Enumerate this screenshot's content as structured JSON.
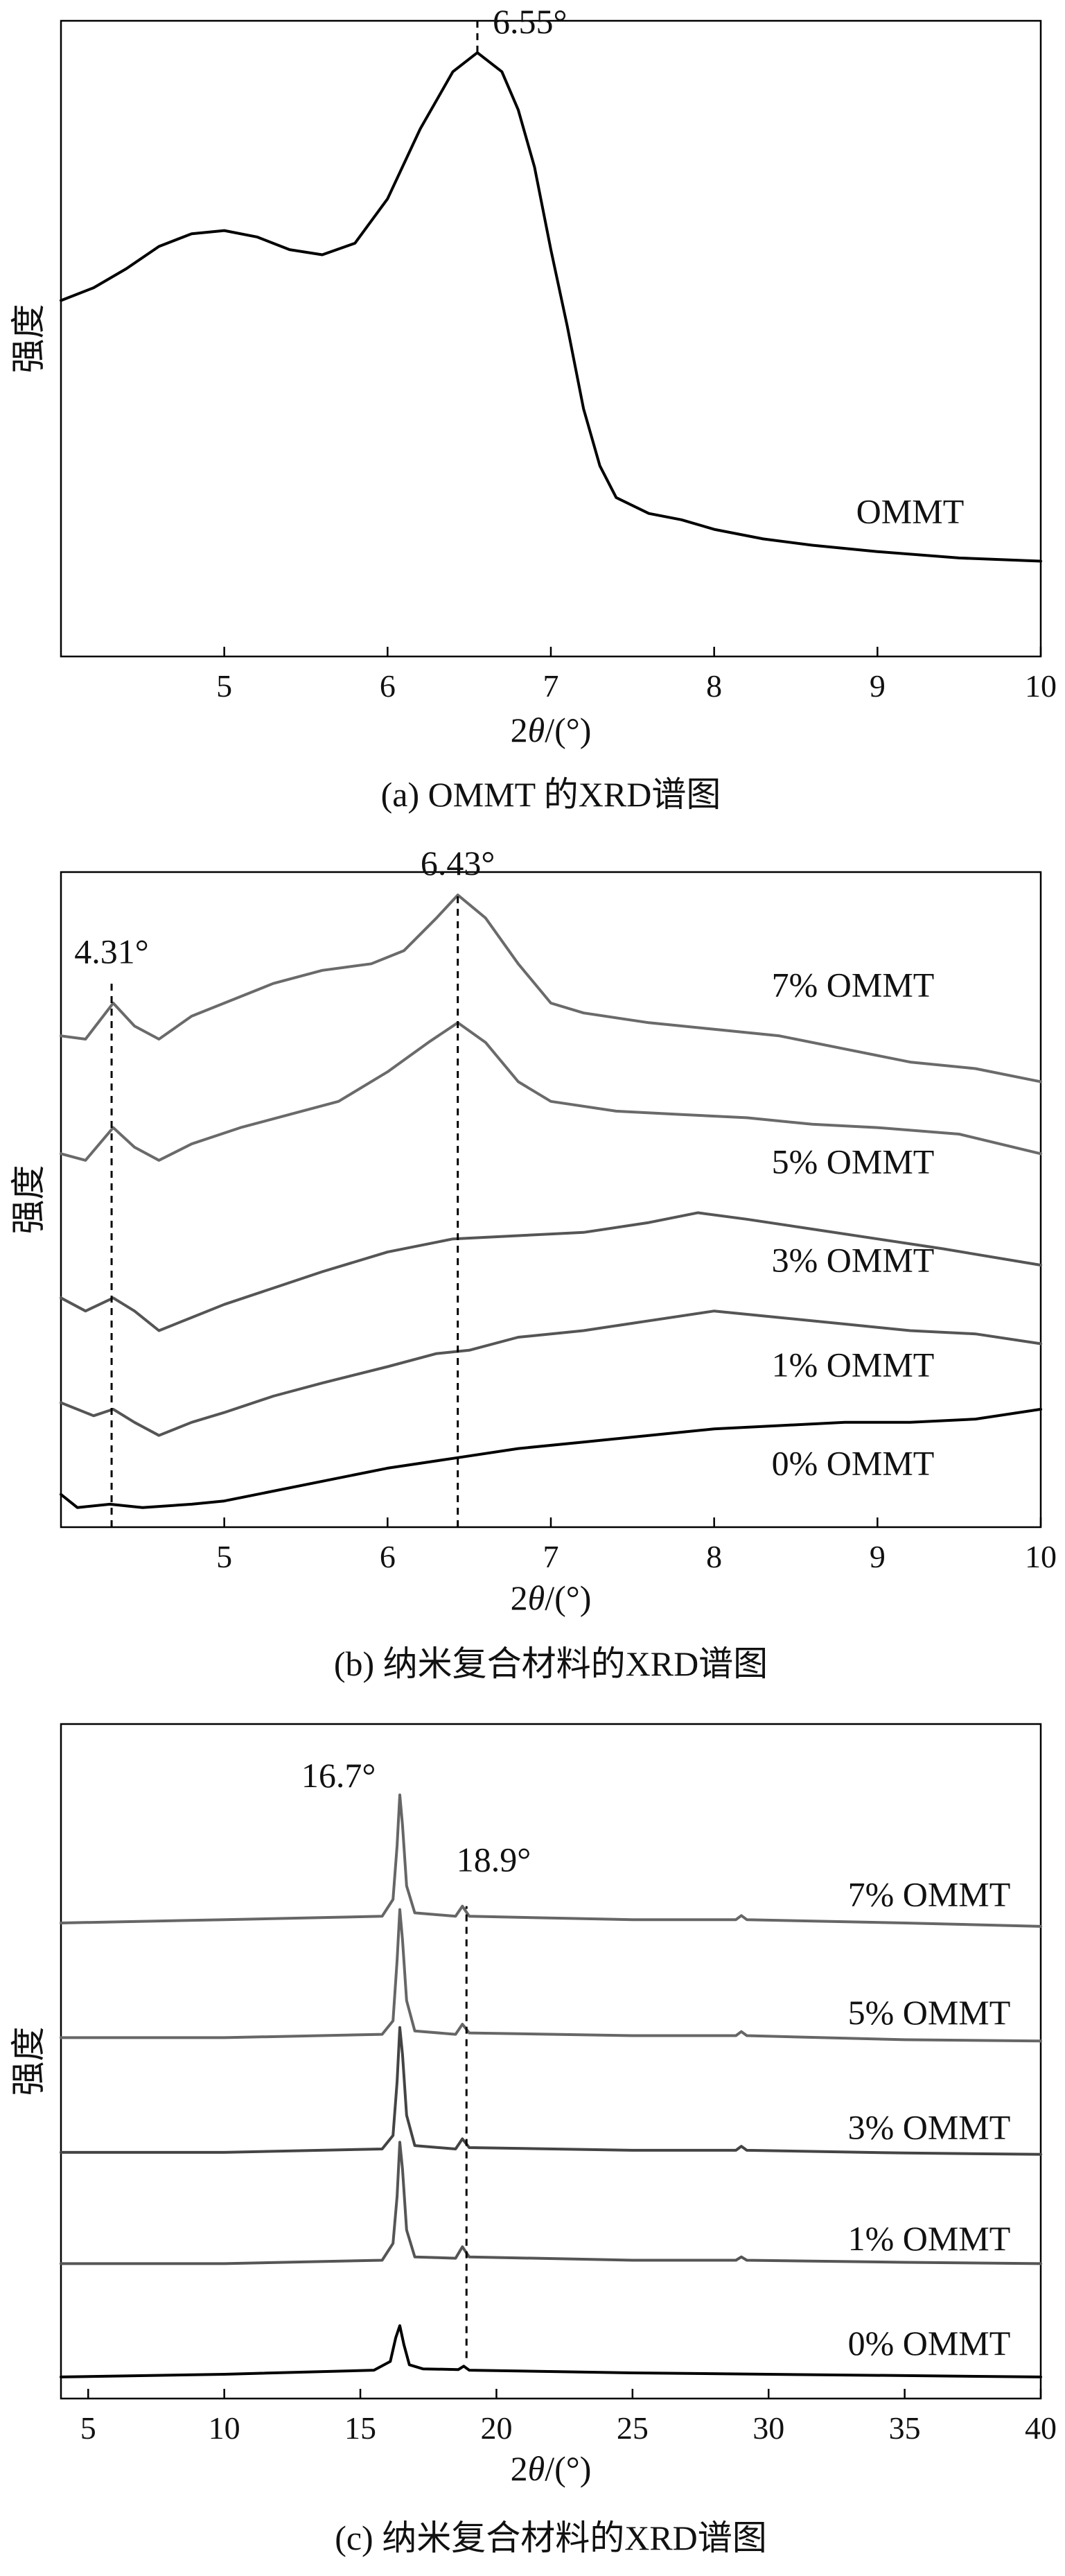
{
  "chart_data": [
    {
      "id": "a",
      "type": "line",
      "caption": "(a) OMMT 的XRD谱图",
      "ylabel": "强度",
      "xlabel_prefix": "2",
      "xlabel_symbol": "θ",
      "xlabel_suffix": "/(°)",
      "xlim": [
        4.0,
        10.0
      ],
      "xticks": [
        5,
        6,
        7,
        8,
        9,
        10
      ],
      "ylim": [
        0,
        100
      ],
      "grid": false,
      "series": [
        {
          "name": "OMMT",
          "color": "#000000",
          "points": [
            [
              4.0,
              56
            ],
            [
              4.2,
              58
            ],
            [
              4.4,
              61
            ],
            [
              4.6,
              64.5
            ],
            [
              4.8,
              66.5
            ],
            [
              5.0,
              67
            ],
            [
              5.2,
              66
            ],
            [
              5.4,
              64
            ],
            [
              5.6,
              63.2
            ],
            [
              5.8,
              65
            ],
            [
              6.0,
              72
            ],
            [
              6.2,
              83
            ],
            [
              6.4,
              92
            ],
            [
              6.55,
              95
            ],
            [
              6.7,
              92
            ],
            [
              6.8,
              86
            ],
            [
              6.9,
              77
            ],
            [
              7.0,
              64
            ],
            [
              7.1,
              52
            ],
            [
              7.2,
              39
            ],
            [
              7.3,
              30
            ],
            [
              7.4,
              25
            ],
            [
              7.6,
              22.5
            ],
            [
              7.8,
              21.5
            ],
            [
              8.0,
              20
            ],
            [
              8.3,
              18.5
            ],
            [
              8.6,
              17.5
            ],
            [
              9.0,
              16.5
            ],
            [
              9.5,
              15.5
            ],
            [
              10.0,
              15
            ]
          ]
        }
      ],
      "annotations": [
        {
          "x": 6.55,
          "label": "6.55°",
          "dash_from": 95,
          "dash_to": 100,
          "label_y": 100
        }
      ],
      "curve_labels": [
        {
          "text": "OMMT",
          "x": 9.2,
          "y": 21
        }
      ]
    },
    {
      "id": "b",
      "type": "line",
      "caption": "(b) 纳米复合材料的XRD谱图",
      "ylabel": "强度",
      "xlabel_prefix": "2",
      "xlabel_symbol": "θ",
      "xlabel_suffix": "/(°)",
      "xlim": [
        4.0,
        10.0
      ],
      "xticks": [
        5,
        6,
        7,
        8,
        9,
        10
      ],
      "ylim": [
        0,
        100
      ],
      "grid": false,
      "series": [
        {
          "name": "0% OMMT",
          "color": "#000000",
          "points": [
            [
              4.0,
              5
            ],
            [
              4.1,
              3
            ],
            [
              4.3,
              3.5
            ],
            [
              4.5,
              3
            ],
            [
              4.8,
              3.5
            ],
            [
              5.0,
              4
            ],
            [
              5.3,
              5.5
            ],
            [
              5.6,
              7
            ],
            [
              6.0,
              9
            ],
            [
              6.4,
              10.5
            ],
            [
              6.8,
              12
            ],
            [
              7.2,
              13
            ],
            [
              7.6,
              14
            ],
            [
              8.0,
              15
            ],
            [
              8.4,
              15.5
            ],
            [
              8.8,
              16
            ],
            [
              9.2,
              16
            ],
            [
              9.6,
              16.5
            ],
            [
              10.0,
              18
            ]
          ]
        },
        {
          "name": "1% OMMT",
          "color": "#555555",
          "points": [
            [
              4.0,
              19
            ],
            [
              4.2,
              17
            ],
            [
              4.32,
              18
            ],
            [
              4.45,
              16
            ],
            [
              4.6,
              14
            ],
            [
              4.8,
              16
            ],
            [
              5.0,
              17.5
            ],
            [
              5.3,
              20
            ],
            [
              5.6,
              22
            ],
            [
              6.0,
              24.5
            ],
            [
              6.3,
              26.5
            ],
            [
              6.5,
              27
            ],
            [
              6.8,
              29
            ],
            [
              7.2,
              30
            ],
            [
              7.6,
              31.5
            ],
            [
              8.0,
              33
            ],
            [
              8.4,
              32
            ],
            [
              8.8,
              31
            ],
            [
              9.2,
              30
            ],
            [
              9.6,
              29.5
            ],
            [
              10.0,
              28
            ]
          ]
        },
        {
          "name": "3% OMMT",
          "color": "#555555",
          "points": [
            [
              4.0,
              35
            ],
            [
              4.15,
              33
            ],
            [
              4.32,
              35
            ],
            [
              4.45,
              33
            ],
            [
              4.6,
              30
            ],
            [
              4.8,
              32
            ],
            [
              5.0,
              34
            ],
            [
              5.3,
              36.5
            ],
            [
              5.6,
              39
            ],
            [
              6.0,
              42
            ],
            [
              6.4,
              44
            ],
            [
              6.8,
              44.5
            ],
            [
              7.2,
              45
            ],
            [
              7.6,
              46.5
            ],
            [
              7.9,
              48
            ],
            [
              8.2,
              47
            ],
            [
              8.6,
              45.5
            ],
            [
              9.0,
              44
            ],
            [
              9.4,
              42.5
            ],
            [
              10.0,
              40
            ]
          ]
        },
        {
          "name": "5% OMMT",
          "color": "#6a6a6a",
          "points": [
            [
              4.0,
              57
            ],
            [
              4.15,
              56
            ],
            [
              4.32,
              61
            ],
            [
              4.45,
              58
            ],
            [
              4.6,
              56
            ],
            [
              4.8,
              58.5
            ],
            [
              5.1,
              61
            ],
            [
              5.4,
              63
            ],
            [
              5.7,
              65
            ],
            [
              6.0,
              69.5
            ],
            [
              6.25,
              74
            ],
            [
              6.43,
              77
            ],
            [
              6.6,
              74
            ],
            [
              6.8,
              68
            ],
            [
              7.0,
              65
            ],
            [
              7.4,
              63.5
            ],
            [
              7.8,
              63
            ],
            [
              8.2,
              62.5
            ],
            [
              8.6,
              61.5
            ],
            [
              9.0,
              61
            ],
            [
              9.5,
              60
            ],
            [
              10.0,
              57
            ]
          ]
        },
        {
          "name": "7% OMMT",
          "color": "#6a6a6a",
          "points": [
            [
              4.0,
              75
            ],
            [
              4.15,
              74.5
            ],
            [
              4.32,
              80
            ],
            [
              4.45,
              76.5
            ],
            [
              4.6,
              74.5
            ],
            [
              4.8,
              78
            ],
            [
              5.0,
              80
            ],
            [
              5.3,
              83
            ],
            [
              5.6,
              85
            ],
            [
              5.9,
              86
            ],
            [
              6.1,
              88
            ],
            [
              6.3,
              93
            ],
            [
              6.43,
              96.5
            ],
            [
              6.6,
              93
            ],
            [
              6.8,
              86
            ],
            [
              7.0,
              80
            ],
            [
              7.2,
              78.5
            ],
            [
              7.6,
              77
            ],
            [
              8.0,
              76
            ],
            [
              8.4,
              75
            ],
            [
              8.8,
              73
            ],
            [
              9.2,
              71
            ],
            [
              9.6,
              70
            ],
            [
              10.0,
              68
            ]
          ]
        }
      ],
      "annotations": [
        {
          "x": 4.31,
          "label": "4.31°",
          "dash_from": 0,
          "dash_to": 83,
          "label_y": 88
        },
        {
          "x": 6.43,
          "label": "6.43°",
          "dash_from": 0,
          "dash_to": 97,
          "label_y": 101.5
        }
      ],
      "curve_labels": [
        {
          "text": "7% OMMT",
          "x": 8.85,
          "y": 81
        },
        {
          "text": "5% OMMT",
          "x": 8.85,
          "y": 54
        },
        {
          "text": "3% OMMT",
          "x": 8.85,
          "y": 39
        },
        {
          "text": "1% OMMT",
          "x": 8.85,
          "y": 23
        },
        {
          "text": "0% OMMT",
          "x": 8.85,
          "y": 8
        }
      ]
    },
    {
      "id": "c",
      "type": "line",
      "caption": "(c) 纳米复合材料的XRD谱图",
      "ylabel": "强度",
      "xlabel_prefix": "2",
      "xlabel_symbol": "θ",
      "xlabel_suffix": "/(°)",
      "xlim": [
        4.0,
        40.0
      ],
      "xticks": [
        5,
        10,
        15,
        20,
        25,
        30,
        35,
        40
      ],
      "ylim": [
        0,
        100
      ],
      "grid": false,
      "series": [
        {
          "name": "0% OMMT",
          "color": "#000000",
          "points": [
            [
              4.0,
              3.2
            ],
            [
              10.0,
              3.6
            ],
            [
              15.5,
              4.2
            ],
            [
              16.1,
              5.5
            ],
            [
              16.3,
              9
            ],
            [
              16.45,
              10.8
            ],
            [
              16.6,
              8
            ],
            [
              16.8,
              5
            ],
            [
              17.3,
              4.4
            ],
            [
              18.6,
              4.3
            ],
            [
              18.8,
              4.8
            ],
            [
              19.0,
              4.2
            ],
            [
              25.0,
              3.8
            ],
            [
              30.0,
              3.6
            ],
            [
              35.0,
              3.4
            ],
            [
              40.0,
              3.2
            ]
          ]
        },
        {
          "name": "1% OMMT",
          "color": "#555555",
          "points": [
            [
              4.0,
              20
            ],
            [
              10.0,
              20
            ],
            [
              15.8,
              20.5
            ],
            [
              16.2,
              23
            ],
            [
              16.35,
              30
            ],
            [
              16.45,
              38
            ],
            [
              16.55,
              34
            ],
            [
              16.7,
              25
            ],
            [
              17.0,
              21
            ],
            [
              18.5,
              20.8
            ],
            [
              18.75,
              22.5
            ],
            [
              19.0,
              21
            ],
            [
              25.0,
              20.5
            ],
            [
              28.8,
              20.5
            ],
            [
              29.0,
              21
            ],
            [
              29.2,
              20.5
            ],
            [
              35.0,
              20.2
            ],
            [
              40.0,
              20
            ]
          ]
        },
        {
          "name": "3% OMMT",
          "color": "#444444",
          "points": [
            [
              4.0,
              36.5
            ],
            [
              10.0,
              36.5
            ],
            [
              15.8,
              37
            ],
            [
              16.2,
              39
            ],
            [
              16.35,
              47
            ],
            [
              16.45,
              55
            ],
            [
              16.55,
              51
            ],
            [
              16.7,
              42
            ],
            [
              17.0,
              37.5
            ],
            [
              18.5,
              37
            ],
            [
              18.75,
              38.5
            ],
            [
              19.0,
              37.2
            ],
            [
              25.0,
              36.8
            ],
            [
              28.8,
              36.8
            ],
            [
              29.0,
              37.4
            ],
            [
              29.2,
              36.8
            ],
            [
              35.0,
              36.4
            ],
            [
              40.0,
              36.2
            ]
          ]
        },
        {
          "name": "5% OMMT",
          "color": "#666666",
          "points": [
            [
              4.0,
              53.5
            ],
            [
              10.0,
              53.5
            ],
            [
              15.8,
              54
            ],
            [
              16.2,
              56
            ],
            [
              16.35,
              65
            ],
            [
              16.45,
              72.5
            ],
            [
              16.55,
              68
            ],
            [
              16.7,
              59
            ],
            [
              17.0,
              54.5
            ],
            [
              18.5,
              54
            ],
            [
              18.75,
              55.5
            ],
            [
              19.0,
              54.2
            ],
            [
              25.0,
              53.8
            ],
            [
              28.8,
              53.8
            ],
            [
              29.0,
              54.4
            ],
            [
              29.2,
              53.8
            ],
            [
              35.0,
              53.2
            ],
            [
              40.0,
              53
            ]
          ]
        },
        {
          "name": "7% OMMT",
          "color": "#666666",
          "points": [
            [
              4.0,
              70.5
            ],
            [
              10.0,
              71
            ],
            [
              15.8,
              71.5
            ],
            [
              16.2,
              74
            ],
            [
              16.35,
              82
            ],
            [
              16.45,
              89.5
            ],
            [
              16.55,
              85
            ],
            [
              16.7,
              76
            ],
            [
              17.0,
              72
            ],
            [
              18.5,
              71.5
            ],
            [
              18.75,
              73
            ],
            [
              19.0,
              71.5
            ],
            [
              25.0,
              71
            ],
            [
              28.8,
              71
            ],
            [
              29.0,
              71.6
            ],
            [
              29.2,
              71
            ],
            [
              35.0,
              70.5
            ],
            [
              40.0,
              70
            ]
          ]
        }
      ],
      "annotations": [
        {
          "x": 16.7,
          "label": "16.7°",
          "dash_from": null,
          "dash_to": null,
          "label_y": 92.5,
          "label_dx": -2.5
        },
        {
          "x": 18.9,
          "label": "18.9°",
          "dash_from": 6,
          "dash_to": 73,
          "label_y": 80,
          "label_dx": 1
        }
      ],
      "curve_labels": [
        {
          "text": "7% OMMT",
          "x": 35.9,
          "y": 73
        },
        {
          "text": "5% OMMT",
          "x": 35.9,
          "y": 55.5
        },
        {
          "text": "3% OMMT",
          "x": 35.9,
          "y": 38.5
        },
        {
          "text": "1% OMMT",
          "x": 35.9,
          "y": 22
        },
        {
          "text": "0% OMMT",
          "x": 35.9,
          "y": 6.5
        }
      ]
    }
  ]
}
